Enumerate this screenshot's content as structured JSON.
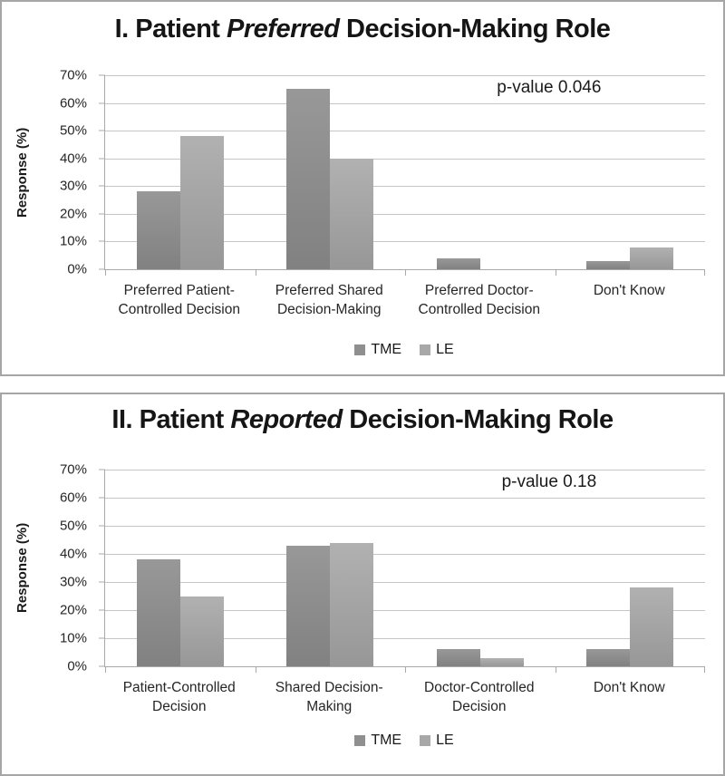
{
  "chart_data": [
    {
      "type": "bar",
      "title_prefix": "I. Patient ",
      "title_italic": "Preferred",
      "title_suffix": " Decision-Making Role",
      "annotation": "p-value 0.046",
      "ylabel": "Response (%)",
      "ylim": [
        0,
        70
      ],
      "yticks": [
        "0%",
        "10%",
        "20%",
        "30%",
        "40%",
        "50%",
        "60%",
        "70%"
      ],
      "grid": true,
      "legend_position": "bottom",
      "categories": [
        [
          "Preferred Patient-",
          "Controlled Decision"
        ],
        [
          "Preferred Shared",
          "Decision-Making"
        ],
        [
          "Preferred Doctor-",
          "Controlled Decision"
        ],
        [
          "Don't Know"
        ]
      ],
      "series": [
        {
          "name": "TME",
          "values": [
            28,
            65,
            4,
            3
          ],
          "bar_top": "#989898",
          "bar_bottom": "#818181",
          "legend_color": "#8f8f8f"
        },
        {
          "name": "LE",
          "values": [
            48,
            40,
            0,
            8
          ],
          "bar_top": "#b1b1b1",
          "bar_bottom": "#979797",
          "legend_color": "#a8a8a8"
        }
      ]
    },
    {
      "type": "bar",
      "title_prefix": "II. Patient ",
      "title_italic": "Reported",
      "title_suffix": " Decision-Making Role",
      "annotation": "p-value 0.18",
      "ylabel": "Response (%)",
      "ylim": [
        0,
        70
      ],
      "yticks": [
        "0%",
        "10%",
        "20%",
        "30%",
        "40%",
        "50%",
        "60%",
        "70%"
      ],
      "grid": true,
      "legend_position": "bottom",
      "categories": [
        [
          "Patient-Controlled",
          "Decision"
        ],
        [
          "Shared Decision-",
          "Making"
        ],
        [
          "Doctor-Controlled",
          "Decision"
        ],
        [
          "Don't Know"
        ]
      ],
      "series": [
        {
          "name": "TME",
          "values": [
            38,
            43,
            6,
            6
          ],
          "bar_top": "#989898",
          "bar_bottom": "#818181",
          "legend_color": "#8f8f8f"
        },
        {
          "name": "LE",
          "values": [
            25,
            44,
            3,
            28
          ],
          "bar_top": "#b1b1b1",
          "bar_bottom": "#979797",
          "legend_color": "#a8a8a8"
        }
      ]
    }
  ],
  "colors": {
    "gridline": "#c6c6c6",
    "axis": "#a9a9a9",
    "panel_border": "#a6a6a6",
    "text": "#1a1a1a"
  }
}
